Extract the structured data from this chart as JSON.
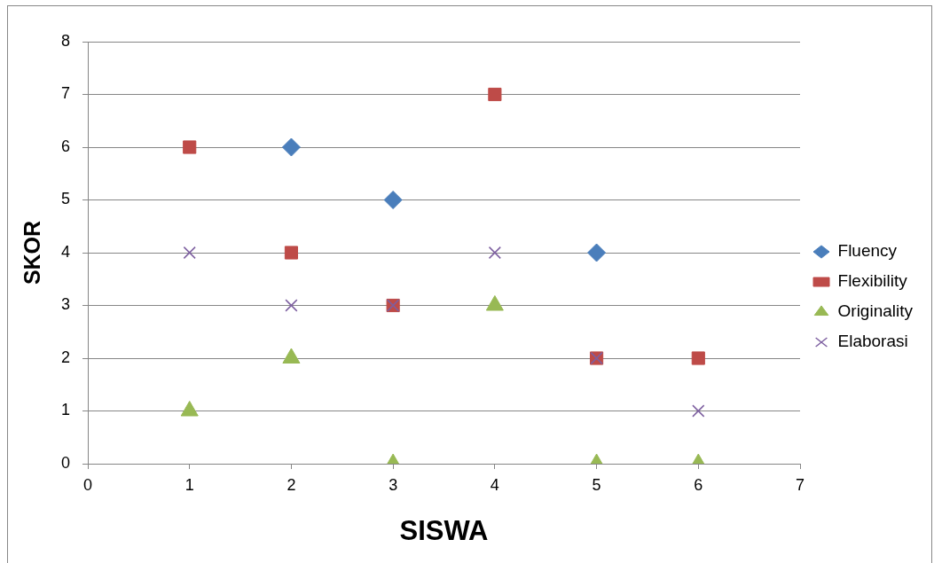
{
  "chart_data": {
    "type": "scatter",
    "xlabel": "SISWA",
    "ylabel": "SKOR",
    "xlim": [
      0,
      7
    ],
    "xticks": [
      0,
      1,
      2,
      3,
      4,
      5,
      6,
      7
    ],
    "ylim": [
      0,
      8
    ],
    "yticks": [
      0,
      1,
      2,
      3,
      4,
      5,
      6,
      7,
      8
    ],
    "grid": "y",
    "legend": "right",
    "series": [
      {
        "name": "Fluency",
        "color": "#4a7ebb",
        "marker": "diamond",
        "x": [
          2,
          3,
          5
        ],
        "values": [
          6,
          5,
          4
        ]
      },
      {
        "name": "Flexibility",
        "color": "#be4b48",
        "marker": "square",
        "x": [
          1,
          2,
          3,
          4,
          5,
          6
        ],
        "values": [
          6,
          4,
          3,
          7,
          2,
          2
        ]
      },
      {
        "name": "Originality",
        "color": "#98b954",
        "marker": "triangle",
        "x": [
          1,
          2,
          3,
          4,
          5,
          6
        ],
        "values": [
          1,
          2,
          0,
          3,
          0,
          0
        ]
      },
      {
        "name": "Elaborasi",
        "color": "#7d5fa0",
        "marker": "cross",
        "x": [
          1,
          2,
          3,
          4,
          5,
          6
        ],
        "values": [
          4,
          3,
          3,
          4,
          2,
          1
        ]
      }
    ]
  }
}
